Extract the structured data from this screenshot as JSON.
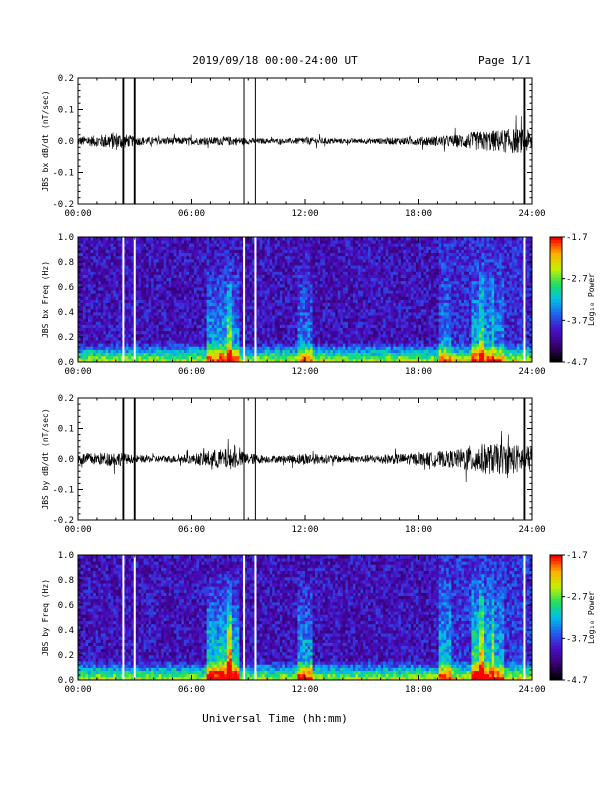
{
  "header": {
    "title": "2019/09/18  00:00-24:00 UT",
    "page": "Page 1/1"
  },
  "xlabel": "Universal Time (hh:mm)",
  "colors": {
    "line": "#000000",
    "spectrogram_palette": [
      "#000000",
      "#3a0078",
      "#4a10c8",
      "#2060f0",
      "#00c0e8",
      "#20e060",
      "#c8f000",
      "#ffb000",
      "#ff0000"
    ]
  },
  "chart_data": [
    {
      "id": "bx-dbdt",
      "type": "line",
      "ylabel": "JBS bx dB/dt (nT/sec)",
      "yticks": [
        "0.2",
        "0.1",
        "0.0",
        "-0.1",
        "-0.2"
      ],
      "ylim": [
        -0.2,
        0.2
      ],
      "x_tick_labels": [
        "00:00",
        "06:00",
        "12:00",
        "18:00",
        "24:00"
      ],
      "xlim_hours": [
        0,
        24
      ],
      "data_gaps_hours": [
        [
          2.35,
          2.45
        ],
        [
          2.95,
          3.05
        ],
        [
          8.75,
          8.8
        ],
        [
          9.35,
          9.4
        ],
        [
          23.55,
          23.65
        ]
      ],
      "envelope": {
        "hours": [
          0,
          1,
          2,
          3,
          4,
          5,
          6,
          7,
          8,
          9,
          10,
          11,
          12,
          13,
          14,
          15,
          16,
          17,
          18,
          19,
          20,
          21,
          22,
          23,
          24
        ],
        "amplitude": [
          0.015,
          0.018,
          0.03,
          0.015,
          0.012,
          0.012,
          0.012,
          0.012,
          0.015,
          0.01,
          0.008,
          0.008,
          0.012,
          0.01,
          0.008,
          0.008,
          0.01,
          0.012,
          0.014,
          0.016,
          0.02,
          0.03,
          0.035,
          0.04,
          0.035
        ]
      }
    },
    {
      "id": "bx-freq",
      "type": "heatmap",
      "ylabel": "JBS bx Freq (Hz)",
      "yticks": [
        "1.0",
        "0.8",
        "0.6",
        "0.4",
        "0.2",
        "0.0"
      ],
      "ylim": [
        0,
        1
      ],
      "x_tick_labels": [
        "00:00",
        "06:00",
        "12:00",
        "18:00",
        "24:00"
      ],
      "colorbar_label": "Log₁₀ Power",
      "colorbar_ticks": [
        "-1.7",
        "-2.7",
        "-3.7",
        "-4.7"
      ],
      "color_range": [
        -4.7,
        -1.7
      ],
      "gaps_hours": [
        2.4,
        3.0,
        8.78,
        9.38,
        23.6
      ]
    },
    {
      "id": "by-dbdt",
      "type": "line",
      "ylabel": "JBS by dB/dt (nT/sec)",
      "yticks": [
        "0.2",
        "0.1",
        "0.0",
        "-0.1",
        "-0.2"
      ],
      "ylim": [
        -0.2,
        0.2
      ],
      "x_tick_labels": [
        "00:00",
        "06:00",
        "12:00",
        "18:00",
        "24:00"
      ],
      "xlim_hours": [
        0,
        24
      ],
      "data_gaps_hours": [
        [
          2.35,
          2.45
        ],
        [
          2.95,
          3.05
        ],
        [
          8.75,
          8.8
        ],
        [
          9.35,
          9.4
        ],
        [
          23.55,
          23.65
        ]
      ],
      "envelope": {
        "hours": [
          0,
          1,
          2,
          3,
          4,
          5,
          6,
          7,
          8,
          9,
          10,
          11,
          12,
          13,
          14,
          15,
          16,
          17,
          18,
          19,
          20,
          21,
          22,
          23,
          24
        ],
        "amplitude": [
          0.02,
          0.02,
          0.025,
          0.012,
          0.012,
          0.012,
          0.015,
          0.03,
          0.035,
          0.02,
          0.012,
          0.012,
          0.02,
          0.015,
          0.012,
          0.012,
          0.015,
          0.018,
          0.02,
          0.025,
          0.03,
          0.05,
          0.05,
          0.05,
          0.04
        ]
      }
    },
    {
      "id": "by-freq",
      "type": "heatmap",
      "ylabel": "JBS by Freq (Hz)",
      "yticks": [
        "1.0",
        "0.8",
        "0.6",
        "0.4",
        "0.2",
        "0.0"
      ],
      "ylim": [
        0,
        1
      ],
      "x_tick_labels": [
        "00:00",
        "06:00",
        "12:00",
        "18:00",
        "24:00"
      ],
      "colorbar_label": "Log₁₀ Power",
      "colorbar_ticks": [
        "-1.7",
        "-2.7",
        "-3.7",
        "-4.7"
      ],
      "color_range": [
        -4.7,
        -1.7
      ],
      "gaps_hours": [
        2.4,
        3.0,
        8.78,
        9.38,
        23.6
      ]
    }
  ]
}
